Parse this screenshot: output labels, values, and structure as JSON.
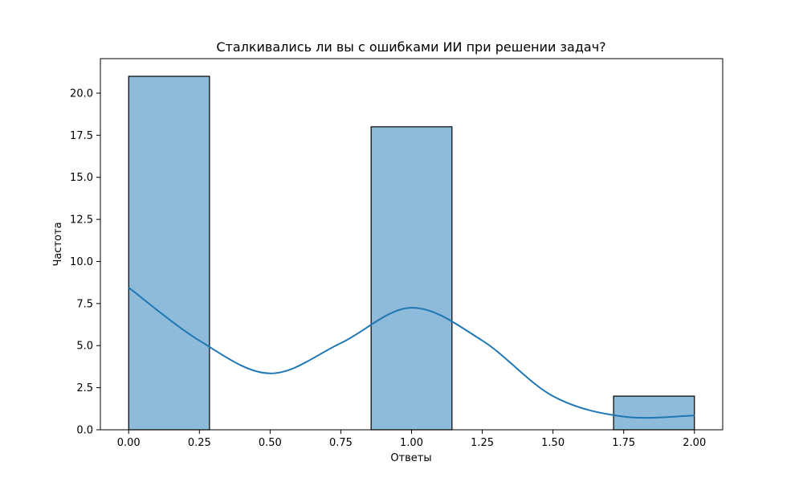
{
  "chart_data": {
    "type": "histogram",
    "title": "Сталкивались ли вы с ошибками ИИ при решении задач?",
    "xlabel": "Ответы",
    "ylabel": "Частота",
    "xlim": [
      -0.1,
      2.1
    ],
    "ylim": [
      0,
      22.05
    ],
    "x_ticks": [
      "0.00",
      "0.25",
      "0.50",
      "0.75",
      "1.00",
      "1.25",
      "1.50",
      "1.75",
      "2.00"
    ],
    "y_ticks": [
      "0.0",
      "2.5",
      "5.0",
      "7.5",
      "10.0",
      "12.5",
      "15.0",
      "17.5",
      "20.0"
    ],
    "bins": [
      {
        "start": 0.0,
        "end": 0.2857,
        "count": 21
      },
      {
        "start": 0.2857,
        "end": 0.5714,
        "count": 0
      },
      {
        "start": 0.5714,
        "end": 0.8571,
        "count": 0
      },
      {
        "start": 0.8571,
        "end": 1.1429,
        "count": 18
      },
      {
        "start": 1.1429,
        "end": 1.4286,
        "count": 0
      },
      {
        "start": 1.4286,
        "end": 1.7143,
        "count": 0
      },
      {
        "start": 1.7143,
        "end": 2.0,
        "count": 2
      }
    ],
    "kde": {
      "x": [
        0.0,
        0.25,
        0.5,
        0.75,
        1.0,
        1.25,
        1.5,
        1.75,
        2.0
      ],
      "y": [
        8.45,
        5.3,
        3.35,
        5.15,
        7.25,
        5.3,
        2.0,
        0.78,
        0.85
      ]
    },
    "colors": {
      "bar_fill": "#8fbbda",
      "bar_edge": "#000000",
      "kde_line": "#1f77b4"
    },
    "grid": false,
    "legend": null
  }
}
